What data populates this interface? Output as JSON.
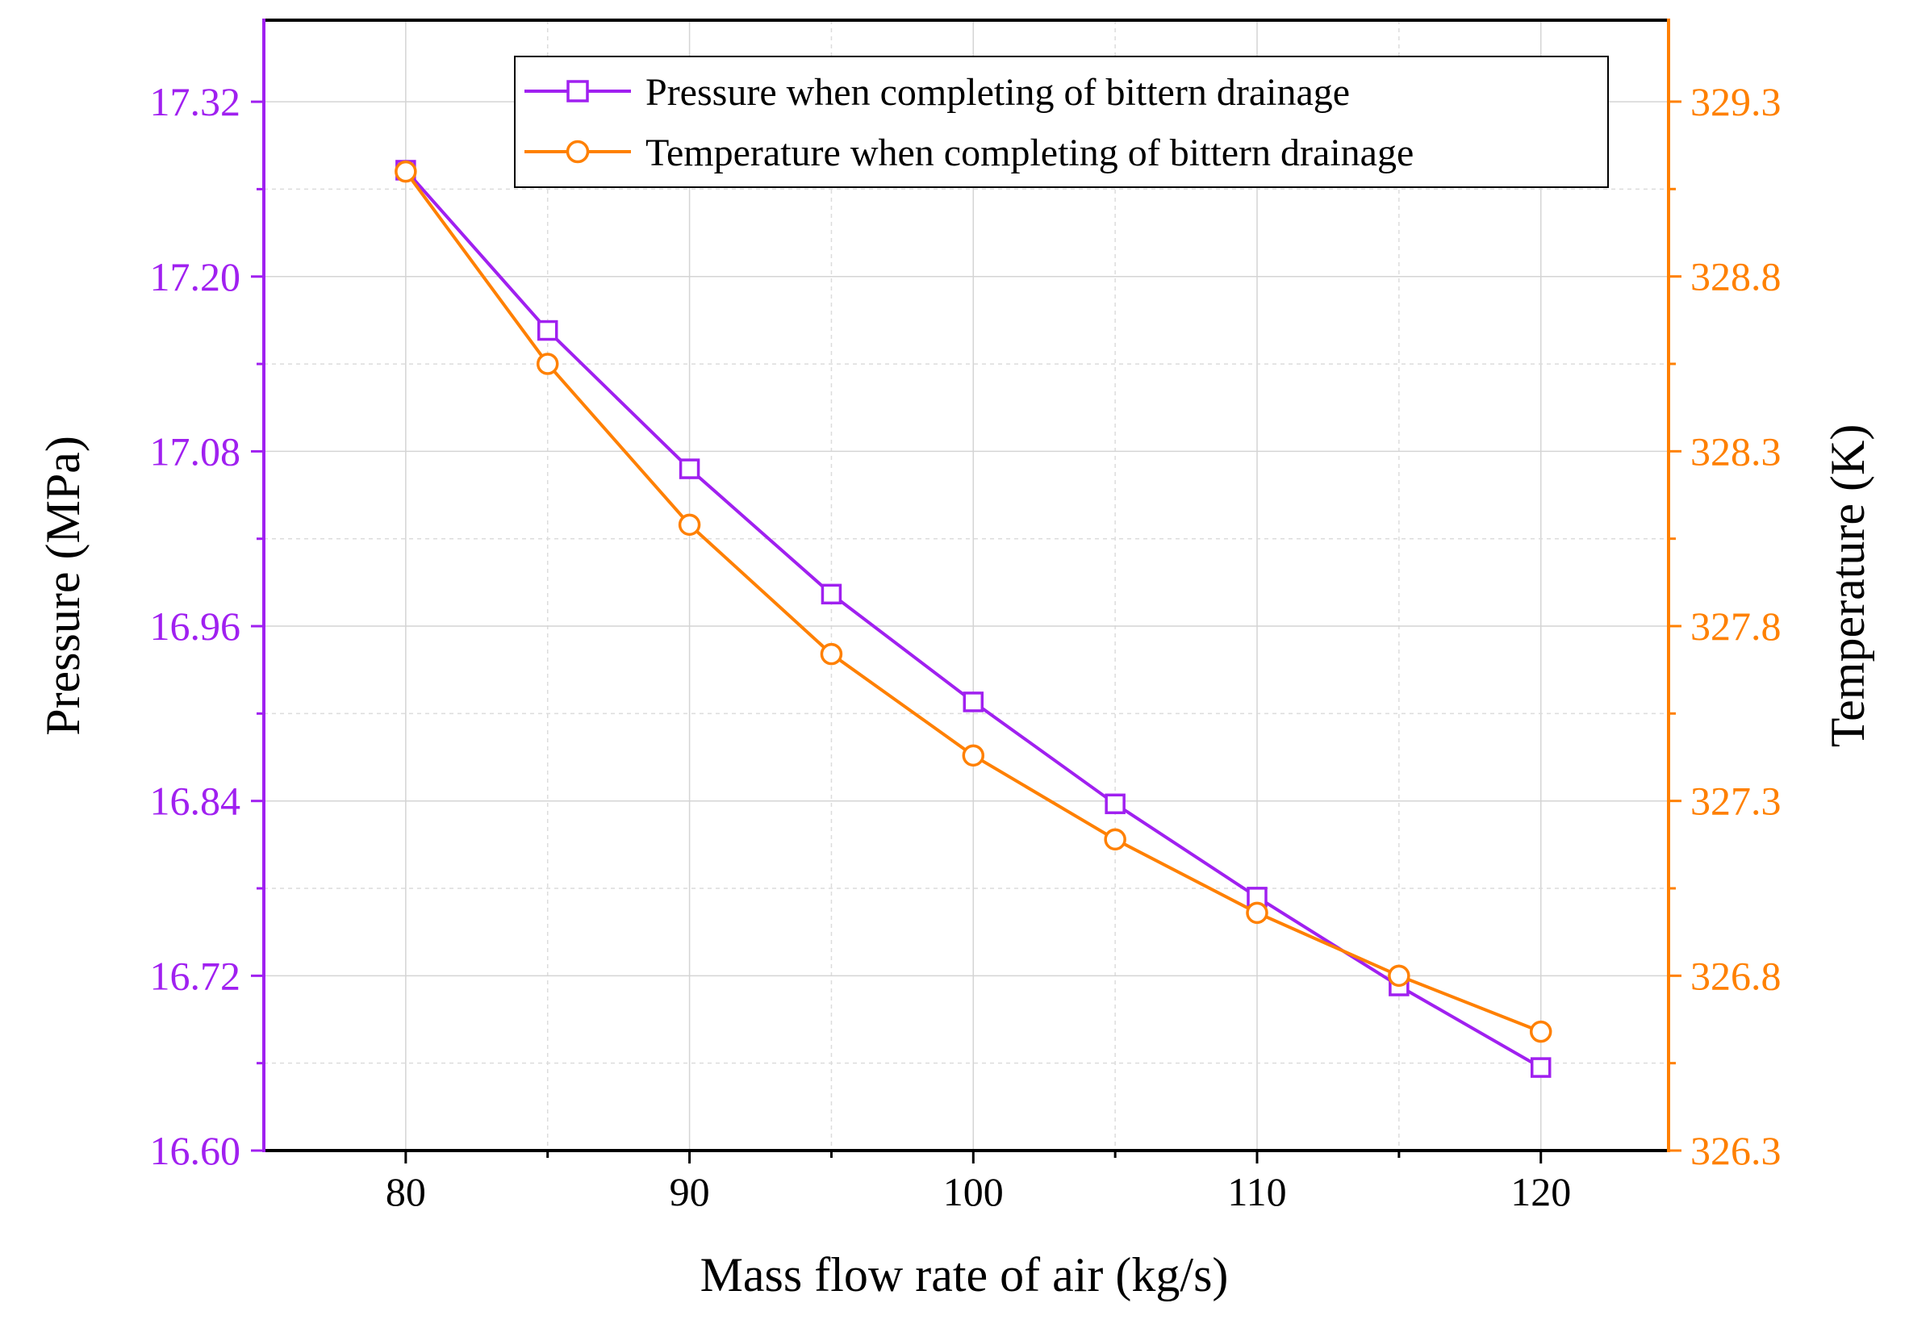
{
  "chart_data": {
    "type": "line",
    "xlabel": "Mass flow rate of air (kg/s)",
    "ylabel_left": "Pressure (MPa)",
    "ylabel_right": "Temperature (K)",
    "x": [
      80,
      85,
      90,
      95,
      100,
      105,
      110,
      115,
      120
    ],
    "xlim": [
      75,
      124.5
    ],
    "xticks": [
      80,
      90,
      100,
      110,
      120
    ],
    "xtick_labels": [
      "80",
      "90",
      "100",
      "110",
      "120"
    ],
    "ylim_left": [
      16.6,
      17.376
    ],
    "yticks_left": [
      16.6,
      16.72,
      16.84,
      16.96,
      17.08,
      17.2,
      17.32
    ],
    "ytick_labels_left": [
      "16.60",
      "16.72",
      "16.84",
      "16.96",
      "17.08",
      "17.20",
      "17.32"
    ],
    "ylim_right": [
      326.3,
      329.533
    ],
    "yticks_right": [
      326.3,
      326.8,
      327.3,
      327.8,
      328.3,
      328.8,
      329.3
    ],
    "ytick_labels_right": [
      "326.3",
      "326.8",
      "327.3",
      "327.8",
      "328.3",
      "328.8",
      "329.3"
    ],
    "grid": true,
    "legend_position": "top-right",
    "series": [
      {
        "name": "Pressure when completing of bittern drainage",
        "axis": "left",
        "marker": "square",
        "color": "#A020F0",
        "values": [
          17.273,
          17.163,
          17.068,
          16.982,
          16.908,
          16.838,
          16.774,
          16.713,
          16.657
        ]
      },
      {
        "name": "Temperature when completing of bittern drainage",
        "axis": "right",
        "marker": "circle",
        "color": "#FF8000",
        "values": [
          329.1,
          328.55,
          328.09,
          327.72,
          327.43,
          327.19,
          326.98,
          326.8,
          326.64
        ]
      }
    ]
  }
}
